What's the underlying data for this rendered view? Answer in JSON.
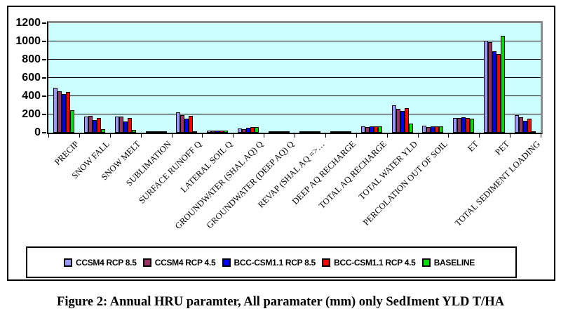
{
  "figure": {
    "caption": "Figure 2: Annual HRU paramter, All paramater (mm) only SedIment  YLD T/HA"
  },
  "chart_data": {
    "type": "bar",
    "title": "",
    "xlabel": "",
    "ylabel": "",
    "ylim": [
      0,
      1200
    ],
    "yticks": [
      0,
      200,
      400,
      600,
      800,
      1000,
      1200
    ],
    "grid": true,
    "plot_background": "#ccffff",
    "legend_position": "bottom",
    "categories": [
      "PRECIP",
      "SNOW FALL",
      "SNOW MELT",
      "SUBLIMATION",
      "SURFACE RUNOFF Q",
      "LATERAL SOIL Q",
      "GROUNDWATER (SHAL AQ) Q",
      "GROUNDWATER (DEEP AQ) Q",
      "REVAP (SHAL AQ =>…",
      "DEEP AQ RECHARGE",
      "TOTAL AQ RECHARGE",
      "TOTAL WATER YLD",
      "PERCOLATION OUT OF SOIL",
      "ET",
      "PET",
      "TOTAL SEDIMENT LOADING"
    ],
    "series": [
      {
        "name": "CCSM4 RCP 8.5",
        "color": "#9999ff",
        "values": [
          490,
          175,
          175,
          3,
          220,
          22,
          45,
          2,
          12,
          2,
          70,
          300,
          75,
          165,
          1010,
          195
        ]
      },
      {
        "name": "CCSM4 RCP 4.5",
        "color": "#993366",
        "values": [
          450,
          185,
          180,
          3,
          190,
          22,
          40,
          2,
          12,
          2,
          65,
          260,
          65,
          160,
          990,
          170
        ]
      },
      {
        "name": "BCC-CSM1.1 RCP 8.5",
        "color": "#0000ff",
        "values": [
          420,
          140,
          125,
          3,
          150,
          20,
          50,
          2,
          12,
          2,
          70,
          240,
          70,
          170,
          890,
          130
        ]
      },
      {
        "name": "BCC-CSM1.1 RCP 4.5",
        "color": "#ff0000",
        "values": [
          445,
          160,
          160,
          3,
          185,
          22,
          58,
          2,
          15,
          2,
          70,
          270,
          70,
          160,
          865,
          155
        ]
      },
      {
        "name": "BASELINE",
        "color": "#00dd00",
        "values": [
          245,
          40,
          30,
          15,
          5,
          25,
          62,
          2,
          3,
          2,
          70,
          100,
          70,
          155,
          1060,
          5
        ]
      }
    ]
  }
}
